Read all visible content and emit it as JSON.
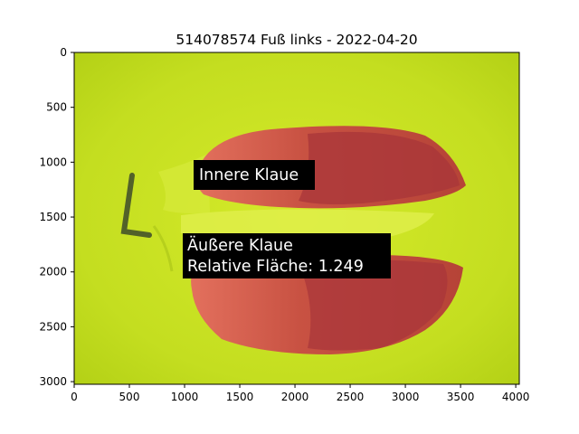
{
  "figure": {
    "title": "514078574 Fuß links - 2022-04-20"
  },
  "chart_data": {
    "type": "image",
    "x_ticks": [
      "0",
      "500",
      "1000",
      "1500",
      "2000",
      "2500",
      "3000",
      "3500",
      "4000"
    ],
    "y_ticks": [
      "0",
      "500",
      "1000",
      "1500",
      "2000",
      "2500",
      "3000"
    ],
    "xlim": [
      0,
      4032
    ],
    "ylim": [
      3024,
      0
    ],
    "annotations": [
      {
        "label_lines": [
          "Innere Klaue"
        ]
      },
      {
        "label_lines": [
          "Äußere Klaue",
          "Relative Fläche: 1.249"
        ]
      }
    ]
  },
  "colors": {
    "background_fill": "#c8e21a",
    "claw_overlay": "#d9504a"
  }
}
